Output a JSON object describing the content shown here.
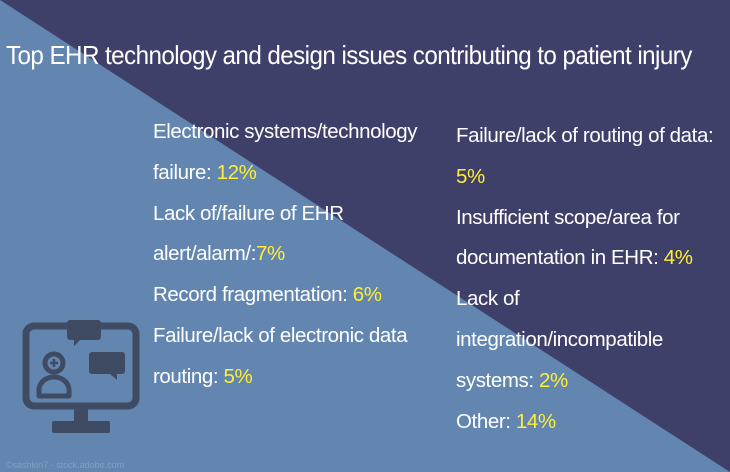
{
  "title": "Top EHR technology and design issues contributing to patient injury",
  "colors": {
    "left_bg": "#6286b0",
    "right_bg": "#3f4069",
    "text": "#ffffff",
    "highlight": "#ffee35"
  },
  "left_items": [
    {
      "label": "Electronic systems/technology failure:",
      "value": "12%"
    },
    {
      "label": "Lack of/failure of EHR alert/alarm/:",
      "value": "7%"
    },
    {
      "label": "Record fragmentation:",
      "value": "6%"
    },
    {
      "label": "Failure/lack of electronic data routing:",
      "value": "5%"
    }
  ],
  "right_items": [
    {
      "label": "Failure/lack of routing of data:",
      "value": "5%"
    },
    {
      "label": "Insufficient scope/area for documentation in EHR:",
      "value": "4%"
    },
    {
      "label": "Lack of integration/incompatible systems:",
      "value": "2%"
    },
    {
      "label": "Other:",
      "value": "14%"
    }
  ],
  "icon": "computer-chat-user-icon",
  "credit": "©sashkin7 - stock.adobe.com"
}
